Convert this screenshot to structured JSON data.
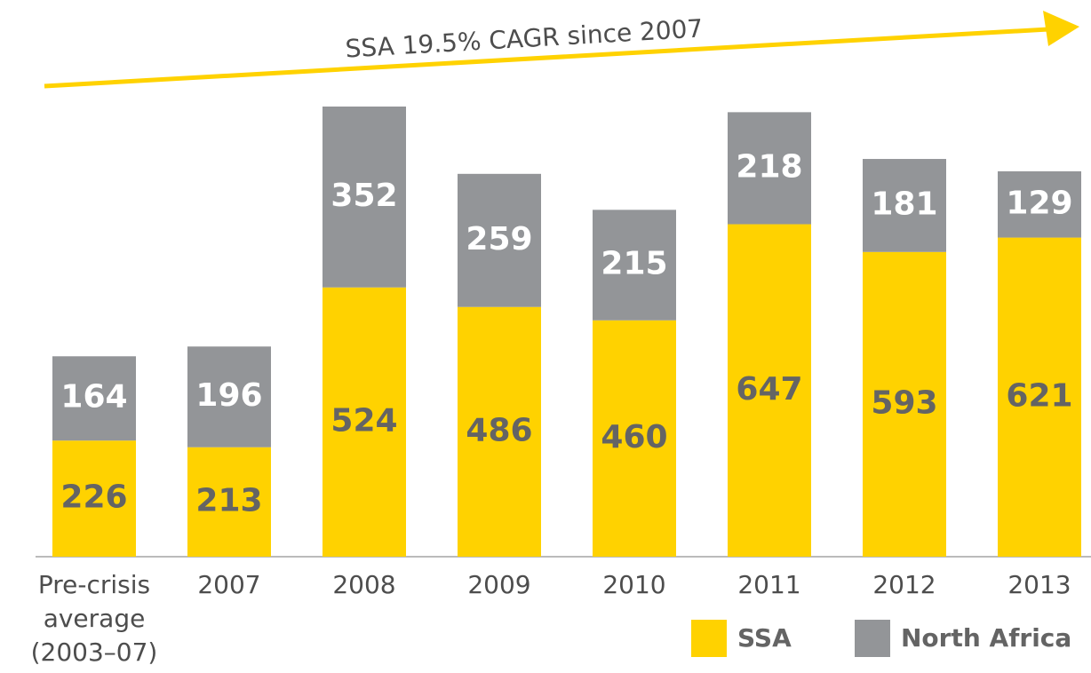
{
  "chart_data": {
    "type": "stacked_bar",
    "annotation": "SSA 19.5% CAGR since 2007",
    "categories": [
      "Pre-crisis average (2003–07)",
      "2007",
      "2008",
      "2009",
      "2010",
      "2011",
      "2012",
      "2013"
    ],
    "series": [
      {
        "name": "SSA",
        "color": "#ffd200",
        "values": [
          226,
          213,
          524,
          486,
          460,
          647,
          593,
          621
        ]
      },
      {
        "name": "North Africa",
        "color": "#939598",
        "values": [
          164,
          196,
          352,
          259,
          215,
          218,
          181,
          129
        ]
      }
    ],
    "legend": "bottom-right"
  }
}
